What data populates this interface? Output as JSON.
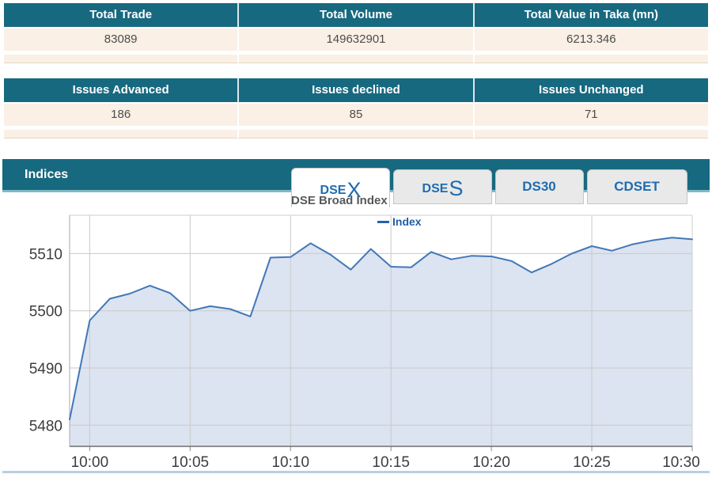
{
  "summary_table": {
    "headers": [
      "Total Trade",
      "Total Volume",
      "Total Value in Taka (mn)"
    ],
    "values": [
      "83089",
      "149632901",
      "6213.346"
    ]
  },
  "issues_table": {
    "headers": [
      "Issues Advanced",
      "Issues declined",
      "Issues Unchanged"
    ],
    "values": [
      "186",
      "85",
      "71"
    ]
  },
  "indices_panel": {
    "title": "Indices",
    "tabs": [
      {
        "label": "DSEX",
        "prefix": "DSE",
        "big": "X",
        "active": true
      },
      {
        "label": "DSES",
        "prefix": "DSE",
        "big": "S",
        "active": false
      },
      {
        "label": "DS30",
        "prefix": "DS30",
        "big": "",
        "active": false
      },
      {
        "label": "CDSET",
        "prefix": "CDSET",
        "big": "",
        "active": false
      }
    ],
    "chart_title": "DSE Broad Index",
    "legend_label": "Index"
  },
  "chart_data": {
    "type": "area",
    "title": "DSE Broad Index",
    "legend_entries": [
      "Index"
    ],
    "legend_position": "top-center",
    "grid": true,
    "x_tick_labels": [
      "10:00",
      "10:05",
      "10:10",
      "10:15",
      "10:20",
      "10:25",
      "10:30"
    ],
    "x_tick_minutes": [
      0,
      5,
      10,
      15,
      20,
      25,
      30
    ],
    "x_range_minutes": [
      -1,
      30
    ],
    "y_ticks": [
      5480,
      5490,
      5500,
      5510
    ],
    "ylim": [
      5476.3,
      5516.7
    ],
    "series": [
      {
        "name": "Index",
        "times": [
          "09:59",
          "10:00",
          "10:01",
          "10:02",
          "10:03",
          "10:04",
          "10:05",
          "10:06",
          "10:07",
          "10:08",
          "10:09",
          "10:10",
          "10:11",
          "10:12",
          "10:13",
          "10:14",
          "10:15",
          "10:16",
          "10:17",
          "10:18",
          "10:19",
          "10:20",
          "10:21",
          "10:22",
          "10:23",
          "10:24",
          "10:25",
          "10:26",
          "10:27",
          "10:28",
          "10:29",
          "10:30"
        ],
        "values": [
          5481.0,
          5498.3,
          5502.1,
          5503.0,
          5504.4,
          5503.1,
          5500.0,
          5500.8,
          5500.3,
          5499.0,
          5509.3,
          5509.4,
          5511.8,
          5509.8,
          5507.2,
          5510.8,
          5507.7,
          5507.6,
          5510.3,
          5509.0,
          5509.6,
          5509.5,
          5508.7,
          5506.7,
          5508.2,
          5510.0,
          5511.3,
          5510.5,
          5511.6,
          5512.3,
          5512.8,
          5512.5
        ]
      }
    ],
    "line_color": "#4377b7",
    "fill_color": "#dce4f1",
    "grid_color": "#c9c9c9",
    "axis_label_color": "#3d3d3d"
  },
  "colors": {
    "header_teal": "#176980",
    "teal_underline": "#7fb9c6",
    "row_cream": "#faf0e5",
    "tab_text_blue": "#1f6cb0",
    "panel_bottom_border": "#b5cfe5"
  }
}
